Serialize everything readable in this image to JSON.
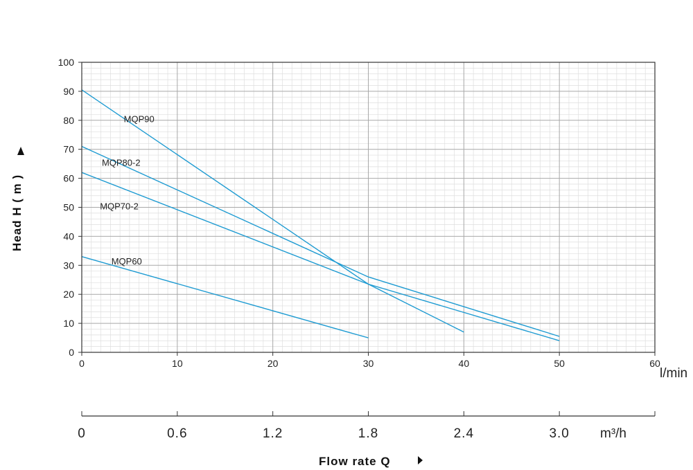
{
  "chart_data": {
    "type": "line",
    "ylabel": "Head H ( m )",
    "xlabel": "Flow rate Q",
    "x_unit": "l/min",
    "x2_unit": "m³/h",
    "ylim": [
      0,
      100
    ],
    "xlim": [
      0,
      60
    ],
    "y_ticks": [
      "0",
      "10",
      "20",
      "30",
      "40",
      "50",
      "60",
      "70",
      "80",
      "90",
      "100"
    ],
    "x_ticks": [
      "0",
      "10",
      "20",
      "30",
      "40",
      "50",
      "60"
    ],
    "x2_ticks": [
      "0",
      "0.6",
      "1.2",
      "1.8",
      "2.4",
      "3.0"
    ],
    "grid": true,
    "line_color": "#1e9bd2",
    "series": [
      {
        "name": "MQP90",
        "points": [
          [
            0,
            90.5
          ],
          [
            30,
            23.5
          ],
          [
            40,
            7
          ]
        ]
      },
      {
        "name": "MQP80-2",
        "points": [
          [
            0,
            71
          ],
          [
            30,
            26
          ],
          [
            50,
            5.5
          ]
        ]
      },
      {
        "name": "MQP70-2",
        "points": [
          [
            0,
            62
          ],
          [
            30,
            23.5
          ],
          [
            50,
            4
          ]
        ]
      },
      {
        "name": "MQP60",
        "points": [
          [
            0,
            33
          ],
          [
            30,
            5
          ]
        ]
      }
    ]
  }
}
